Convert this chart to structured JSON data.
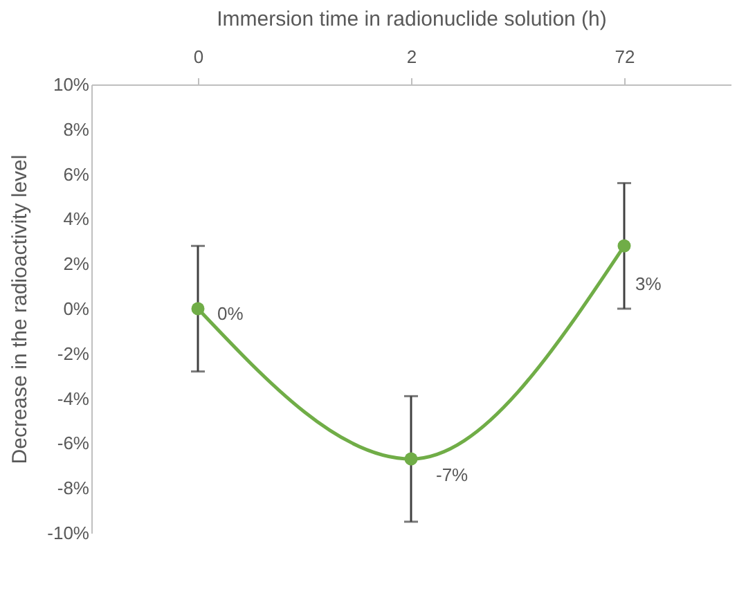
{
  "chart_data": {
    "type": "line",
    "xlabel": "Immersion time in radionuclide solution (h)",
    "ylabel": "Decrease in the radioactivity level",
    "categories": [
      "0",
      "2",
      "72"
    ],
    "series": [
      {
        "color": "#70ad47",
        "values": [
          0,
          -6.7,
          2.8
        ],
        "errors": [
          2.8,
          2.8,
          2.8
        ],
        "value_labels": [
          "0%",
          "-7%",
          "3%"
        ]
      }
    ],
    "ylim": [
      -10,
      10
    ],
    "yticks": [
      {
        "value": -10,
        "label": "-10%"
      },
      {
        "value": -8,
        "label": "-8%"
      },
      {
        "value": -6,
        "label": "-6%"
      },
      {
        "value": -4,
        "label": "-4%"
      },
      {
        "value": -2,
        "label": "-2%"
      },
      {
        "value": 0,
        "label": "0%"
      },
      {
        "value": 2,
        "label": "2%"
      },
      {
        "value": 4,
        "label": "4%"
      },
      {
        "value": 6,
        "label": "6%"
      },
      {
        "value": 8,
        "label": "8%"
      },
      {
        "value": 10,
        "label": "10%"
      }
    ],
    "grid": false,
    "marker": "circle",
    "line_style": "solid"
  }
}
